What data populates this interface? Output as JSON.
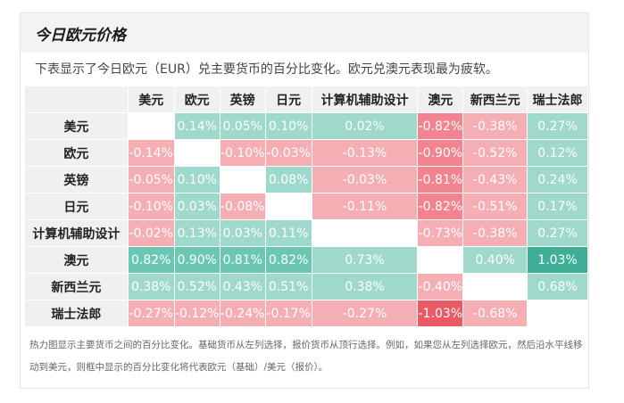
{
  "title": "今日欧元价格",
  "subtitle": "下表显示了今日欧元（EUR）兑主要货币的百分比变化。欧元兑澳元表现最为疲软。",
  "columns": [
    "美元",
    "欧元",
    "英镑",
    "日元",
    "计算机辅助设计",
    "澳元",
    "新西兰元",
    "瑞士法郎"
  ],
  "rows": [
    {
      "label": "美元",
      "cells": [
        null,
        "0.14%",
        "0.05%",
        "0.10%",
        "0.02%",
        "-0.82%",
        "-0.38%",
        "0.27%"
      ]
    },
    {
      "label": "欧元",
      "cells": [
        "-0.14%",
        null,
        "-0.10%",
        "-0.03%",
        "-0.13%",
        "-0.90%",
        "-0.52%",
        "0.12%"
      ]
    },
    {
      "label": "英镑",
      "cells": [
        "-0.05%",
        "0.10%",
        null,
        "0.08%",
        "-0.03%",
        "-0.81%",
        "-0.43%",
        "0.24%"
      ]
    },
    {
      "label": "日元",
      "cells": [
        "-0.10%",
        "0.03%",
        "-0.08%",
        null,
        "-0.11%",
        "-0.82%",
        "-0.51%",
        "0.17%"
      ]
    },
    {
      "label": "计算机辅助设计",
      "cells": [
        "-0.02%",
        "0.13%",
        "0.03%",
        "0.11%",
        null,
        "-0.73%",
        "-0.38%",
        "0.27%"
      ]
    },
    {
      "label": "澳元",
      "cells": [
        "0.82%",
        "0.90%",
        "0.81%",
        "0.82%",
        "0.73%",
        null,
        "0.40%",
        "1.03%"
      ]
    },
    {
      "label": "新西兰元",
      "cells": [
        "0.38%",
        "0.52%",
        "0.43%",
        "0.51%",
        "0.38%",
        "-0.40%",
        null,
        "0.68%"
      ]
    },
    {
      "label": "瑞士法郎",
      "cells": [
        "-0.27%",
        "-0.12%",
        "-0.24%",
        "-0.17%",
        "-0.27%",
        "-1.03%",
        "-0.68%",
        null
      ]
    }
  ],
  "colors": {
    "positive_light": "#9fd9cc",
    "positive_mid": "#6cc7b2",
    "positive_strong": "#3fae96",
    "negative_light": "#f6aeb5",
    "negative_mid": "#f1848e",
    "negative_strong": "#ea5a66"
  },
  "footnote": "热力图显示主要货币之间的百分比变化。基础货币从左列选择，报价货币从顶行选择。例如，如果您从左列选择欧元，然后沿水平线移动到美元，则框中显示的百分比变化将代表欧元（基础）/美元（报价）。"
}
